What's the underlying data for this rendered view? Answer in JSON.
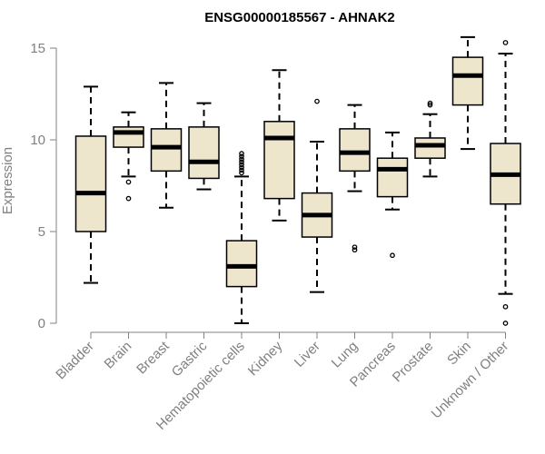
{
  "chart_data": {
    "type": "boxplot",
    "title": "ENSG00000185567 - AHNAK2",
    "xlabel": "",
    "ylabel": "Expression",
    "ylim": [
      0,
      15
    ],
    "yticks": [
      0,
      5,
      10,
      15
    ],
    "grid": false,
    "legend": "none",
    "colors": {
      "box_fill": "#ede6cc",
      "stroke": "#000000",
      "axis": "#808080",
      "label": "#808080"
    },
    "categories": [
      "Bladder",
      "Brain",
      "Breast",
      "Gastric",
      "Hematopoietic cells",
      "Kidney",
      "Liver",
      "Lung",
      "Pancreas",
      "Prostate",
      "Skin",
      "Unknown / Other"
    ],
    "boxes": [
      {
        "name": "Bladder",
        "whisker_low": 2.2,
        "q1": 5.0,
        "median": 7.1,
        "q3": 10.2,
        "whisker_high": 12.9,
        "outliers": []
      },
      {
        "name": "Brain",
        "whisker_low": 8.0,
        "q1": 9.6,
        "median": 10.4,
        "q3": 10.7,
        "whisker_high": 11.5,
        "outliers": [
          7.7,
          6.8
        ]
      },
      {
        "name": "Breast",
        "whisker_low": 6.3,
        "q1": 8.3,
        "median": 9.6,
        "q3": 10.6,
        "whisker_high": 13.1,
        "outliers": []
      },
      {
        "name": "Gastric",
        "whisker_low": 7.3,
        "q1": 7.9,
        "median": 8.8,
        "q3": 10.7,
        "whisker_high": 12.0,
        "outliers": []
      },
      {
        "name": "Hematopoietic cells",
        "whisker_low": 0.0,
        "q1": 2.0,
        "median": 3.1,
        "q3": 4.5,
        "whisker_high": 8.0,
        "outliers": [
          8.2,
          8.35,
          8.5,
          8.65,
          8.8,
          8.95,
          9.1,
          9.25
        ]
      },
      {
        "name": "Kidney",
        "whisker_low": 5.6,
        "q1": 6.8,
        "median": 10.1,
        "q3": 11.0,
        "whisker_high": 13.8,
        "outliers": []
      },
      {
        "name": "Liver",
        "whisker_low": 1.7,
        "q1": 4.7,
        "median": 5.9,
        "q3": 7.1,
        "whisker_high": 9.9,
        "outliers": [
          12.1
        ]
      },
      {
        "name": "Lung",
        "whisker_low": 7.2,
        "q1": 8.3,
        "median": 9.3,
        "q3": 10.6,
        "whisker_high": 11.9,
        "outliers": [
          4.0,
          4.15
        ]
      },
      {
        "name": "Pancreas",
        "whisker_low": 6.2,
        "q1": 6.9,
        "median": 8.4,
        "q3": 9.0,
        "whisker_high": 10.4,
        "outliers": [
          3.7
        ]
      },
      {
        "name": "Prostate",
        "whisker_low": 8.0,
        "q1": 9.0,
        "median": 9.7,
        "q3": 10.1,
        "whisker_high": 11.4,
        "outliers": [
          11.9,
          12.0
        ]
      },
      {
        "name": "Skin",
        "whisker_low": 9.5,
        "q1": 11.9,
        "median": 13.5,
        "q3": 14.5,
        "whisker_high": 15.6,
        "outliers": []
      },
      {
        "name": "Unknown / Other",
        "whisker_low": 1.6,
        "q1": 6.5,
        "median": 8.1,
        "q3": 9.8,
        "whisker_high": 14.7,
        "outliers": [
          15.3,
          0.9,
          0.0
        ]
      }
    ]
  }
}
